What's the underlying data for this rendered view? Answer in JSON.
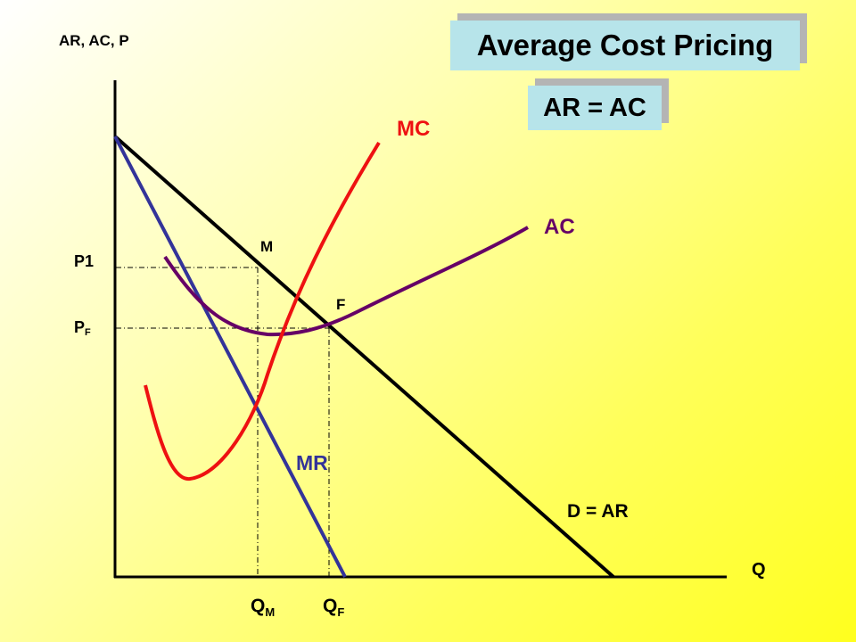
{
  "title": "Average Cost Pricing",
  "subtitle": "AR = AC",
  "colors": {
    "mc": "#ee1111",
    "mr": "#333399",
    "ac": "#660066",
    "demand": "#000000",
    "box": "#b7e4ea"
  },
  "axis": {
    "y_label": "AR, AC, P",
    "x_label": "Q"
  },
  "curves": {
    "mc": "MC",
    "ac": "AC",
    "mr": "MR",
    "demand": "D = AR"
  },
  "points": {
    "m": "M",
    "f": "F"
  },
  "price_labels": {
    "p1": "P1",
    "pf_main": "P",
    "pf_sub": "F"
  },
  "quantity_labels": {
    "qm_main": "Q",
    "qm_sub": "M",
    "qf_main": "Q",
    "qf_sub": "F"
  }
}
